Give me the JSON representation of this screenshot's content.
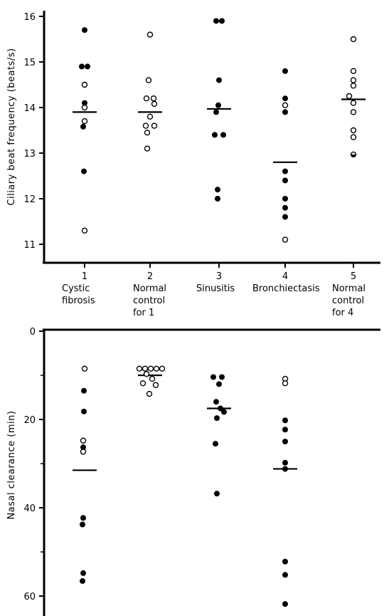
{
  "chart_data": [
    {
      "type": "scatter",
      "ylabel": "Ciliary beat frequency  (beats/s)",
      "ylim": [
        10.8,
        16.1
      ],
      "yticks": [
        "11",
        "12",
        "13",
        "14",
        "15",
        "16"
      ],
      "categories": [
        {
          "number": "1",
          "lines": [
            "Cystic",
            "fibrosis"
          ]
        },
        {
          "number": "2",
          "lines": [
            "Normal",
            "control",
            "for 1"
          ]
        },
        {
          "number": "3",
          "lines": [
            "Sinusitis"
          ]
        },
        {
          "number": "4",
          "lines": [
            "Bronchiectasis"
          ]
        },
        {
          "number": "5",
          "lines": [
            "Normal",
            "control",
            "for 4"
          ]
        }
      ],
      "means": [
        13.9,
        13.9,
        13.97,
        12.8,
        14.18
      ],
      "points": [
        {
          "cat": 1,
          "y": 15.7,
          "dx": 0,
          "fill": "filled"
        },
        {
          "cat": 1,
          "y": 14.9,
          "dx": -4,
          "fill": "filled"
        },
        {
          "cat": 1,
          "y": 14.9,
          "dx": 4,
          "fill": "filled"
        },
        {
          "cat": 1,
          "y": 14.5,
          "dx": 0,
          "fill": "open"
        },
        {
          "cat": 1,
          "y": 14.1,
          "dx": 0,
          "fill": "filled"
        },
        {
          "cat": 1,
          "y": 14.0,
          "dx": 0,
          "fill": "open"
        },
        {
          "cat": 1,
          "y": 13.7,
          "dx": 0,
          "fill": "open"
        },
        {
          "cat": 1,
          "y": 13.58,
          "dx": -2,
          "fill": "filled"
        },
        {
          "cat": 1,
          "y": 12.6,
          "dx": -1,
          "fill": "filled"
        },
        {
          "cat": 1,
          "y": 11.3,
          "dx": 0,
          "fill": "open"
        },
        {
          "cat": 2,
          "y": 15.6,
          "dx": 0,
          "fill": "open"
        },
        {
          "cat": 2,
          "y": 14.6,
          "dx": -2,
          "fill": "open"
        },
        {
          "cat": 2,
          "y": 14.2,
          "dx": -5,
          "fill": "open"
        },
        {
          "cat": 2,
          "y": 14.2,
          "dx": 5,
          "fill": "open"
        },
        {
          "cat": 2,
          "y": 14.08,
          "dx": 6,
          "fill": "open"
        },
        {
          "cat": 2,
          "y": 13.8,
          "dx": 0,
          "fill": "open"
        },
        {
          "cat": 2,
          "y": 13.6,
          "dx": -6,
          "fill": "open"
        },
        {
          "cat": 2,
          "y": 13.6,
          "dx": 6,
          "fill": "open"
        },
        {
          "cat": 2,
          "y": 13.45,
          "dx": -4,
          "fill": "open"
        },
        {
          "cat": 2,
          "y": 13.1,
          "dx": -4,
          "fill": "open"
        },
        {
          "cat": 3,
          "y": 15.9,
          "dx": -4,
          "fill": "filled"
        },
        {
          "cat": 3,
          "y": 15.9,
          "dx": 4,
          "fill": "filled"
        },
        {
          "cat": 3,
          "y": 14.6,
          "dx": 0,
          "fill": "filled"
        },
        {
          "cat": 3,
          "y": 14.05,
          "dx": -1,
          "fill": "filled"
        },
        {
          "cat": 3,
          "y": 13.9,
          "dx": -4,
          "fill": "filled"
        },
        {
          "cat": 3,
          "y": 13.4,
          "dx": -6,
          "fill": "filled"
        },
        {
          "cat": 3,
          "y": 13.4,
          "dx": 6,
          "fill": "filled"
        },
        {
          "cat": 3,
          "y": 12.2,
          "dx": -2,
          "fill": "filled"
        },
        {
          "cat": 3,
          "y": 12.0,
          "dx": -2,
          "fill": "filled"
        },
        {
          "cat": 4,
          "y": 14.8,
          "dx": 0,
          "fill": "filled"
        },
        {
          "cat": 4,
          "y": 14.2,
          "dx": 0,
          "fill": "filled"
        },
        {
          "cat": 4,
          "y": 14.05,
          "dx": 0,
          "fill": "open"
        },
        {
          "cat": 4,
          "y": 13.9,
          "dx": 0,
          "fill": "filled"
        },
        {
          "cat": 4,
          "y": 12.6,
          "dx": 0,
          "fill": "filled"
        },
        {
          "cat": 4,
          "y": 12.4,
          "dx": 0,
          "fill": "filled"
        },
        {
          "cat": 4,
          "y": 12.0,
          "dx": 0,
          "fill": "filled"
        },
        {
          "cat": 4,
          "y": 11.8,
          "dx": 0,
          "fill": "filled"
        },
        {
          "cat": 4,
          "y": 11.6,
          "dx": 0,
          "fill": "filled"
        },
        {
          "cat": 4,
          "y": 11.1,
          "dx": 0,
          "fill": "open"
        },
        {
          "cat": 5,
          "y": 15.5,
          "dx": 0,
          "fill": "open"
        },
        {
          "cat": 5,
          "y": 14.8,
          "dx": 0,
          "fill": "open"
        },
        {
          "cat": 5,
          "y": 14.6,
          "dx": 0,
          "fill": "open"
        },
        {
          "cat": 5,
          "y": 14.48,
          "dx": 0,
          "fill": "open"
        },
        {
          "cat": 5,
          "y": 14.25,
          "dx": -6,
          "fill": "open"
        },
        {
          "cat": 5,
          "y": 14.1,
          "dx": 0,
          "fill": "open"
        },
        {
          "cat": 5,
          "y": 13.9,
          "dx": 0,
          "fill": "open"
        },
        {
          "cat": 5,
          "y": 13.5,
          "dx": 0,
          "fill": "open"
        },
        {
          "cat": 5,
          "y": 13.35,
          "dx": 0,
          "fill": "open"
        },
        {
          "cat": 5,
          "y": 12.97,
          "dx": 0,
          "fill": "half"
        }
      ]
    },
    {
      "type": "scatter",
      "ylabel": "Nasal clearance  (min)",
      "ylim": [
        0,
        62.5
      ],
      "yticks": [
        "0",
        "20",
        "40",
        "60"
      ],
      "means": [
        31.5,
        10.0,
        17.5,
        31.2
      ],
      "points": [
        {
          "cat": 1,
          "y": 8.5,
          "dx": 0,
          "fill": "open"
        },
        {
          "cat": 1,
          "y": 13.5,
          "dx": -1,
          "fill": "filled"
        },
        {
          "cat": 1,
          "y": 18.2,
          "dx": -1,
          "fill": "filled"
        },
        {
          "cat": 1,
          "y": 24.8,
          "dx": -2,
          "fill": "open"
        },
        {
          "cat": 1,
          "y": 26.3,
          "dx": -2,
          "fill": "filled"
        },
        {
          "cat": 1,
          "y": 27.3,
          "dx": -2,
          "fill": "open"
        },
        {
          "cat": 1,
          "y": 42.3,
          "dx": -2,
          "fill": "filled"
        },
        {
          "cat": 1,
          "y": 43.8,
          "dx": -3,
          "fill": "filled"
        },
        {
          "cat": 1,
          "y": 54.8,
          "dx": -2,
          "fill": "filled"
        },
        {
          "cat": 1,
          "y": 56.6,
          "dx": -3,
          "fill": "filled"
        },
        {
          "cat": 2,
          "y": 8.5,
          "dx": -15,
          "fill": "open"
        },
        {
          "cat": 2,
          "y": 8.5,
          "dx": -7,
          "fill": "open"
        },
        {
          "cat": 2,
          "y": 8.5,
          "dx": 1,
          "fill": "open"
        },
        {
          "cat": 2,
          "y": 8.5,
          "dx": 9,
          "fill": "open"
        },
        {
          "cat": 2,
          "y": 8.5,
          "dx": 17,
          "fill": "open"
        },
        {
          "cat": 2,
          "y": 9.7,
          "dx": -5,
          "fill": "open"
        },
        {
          "cat": 2,
          "y": 10.8,
          "dx": 3,
          "fill": "open"
        },
        {
          "cat": 2,
          "y": 11.8,
          "dx": -10,
          "fill": "open"
        },
        {
          "cat": 2,
          "y": 12.2,
          "dx": 8,
          "fill": "open"
        },
        {
          "cat": 2,
          "y": 14.2,
          "dx": -1,
          "fill": "open"
        },
        {
          "cat": 3,
          "y": 10.4,
          "dx": -8,
          "fill": "filled"
        },
        {
          "cat": 3,
          "y": 10.4,
          "dx": 4,
          "fill": "filled"
        },
        {
          "cat": 3,
          "y": 12.0,
          "dx": 0,
          "fill": "filled"
        },
        {
          "cat": 3,
          "y": 16.0,
          "dx": -4,
          "fill": "filled"
        },
        {
          "cat": 3,
          "y": 17.5,
          "dx": 2,
          "fill": "filled"
        },
        {
          "cat": 3,
          "y": 18.3,
          "dx": 7,
          "fill": "filled"
        },
        {
          "cat": 3,
          "y": 19.7,
          "dx": -3,
          "fill": "filled"
        },
        {
          "cat": 3,
          "y": 25.5,
          "dx": -5,
          "fill": "filled"
        },
        {
          "cat": 3,
          "y": 36.8,
          "dx": -3,
          "fill": "filled"
        },
        {
          "cat": 4,
          "y": 10.8,
          "dx": 0,
          "fill": "open"
        },
        {
          "cat": 4,
          "y": 11.8,
          "dx": 0,
          "fill": "open"
        },
        {
          "cat": 4,
          "y": 20.2,
          "dx": 0,
          "fill": "filled"
        },
        {
          "cat": 4,
          "y": 22.3,
          "dx": 0,
          "fill": "filled"
        },
        {
          "cat": 4,
          "y": 25.0,
          "dx": 0,
          "fill": "filled"
        },
        {
          "cat": 4,
          "y": 29.8,
          "dx": 0,
          "fill": "filled"
        },
        {
          "cat": 4,
          "y": 31.2,
          "dx": 0,
          "fill": "filled"
        },
        {
          "cat": 4,
          "y": 52.2,
          "dx": 0,
          "fill": "filled"
        },
        {
          "cat": 4,
          "y": 55.2,
          "dx": 0,
          "fill": "filled"
        },
        {
          "cat": 4,
          "y": 61.8,
          "dx": 0,
          "fill": "filled"
        }
      ]
    }
  ]
}
